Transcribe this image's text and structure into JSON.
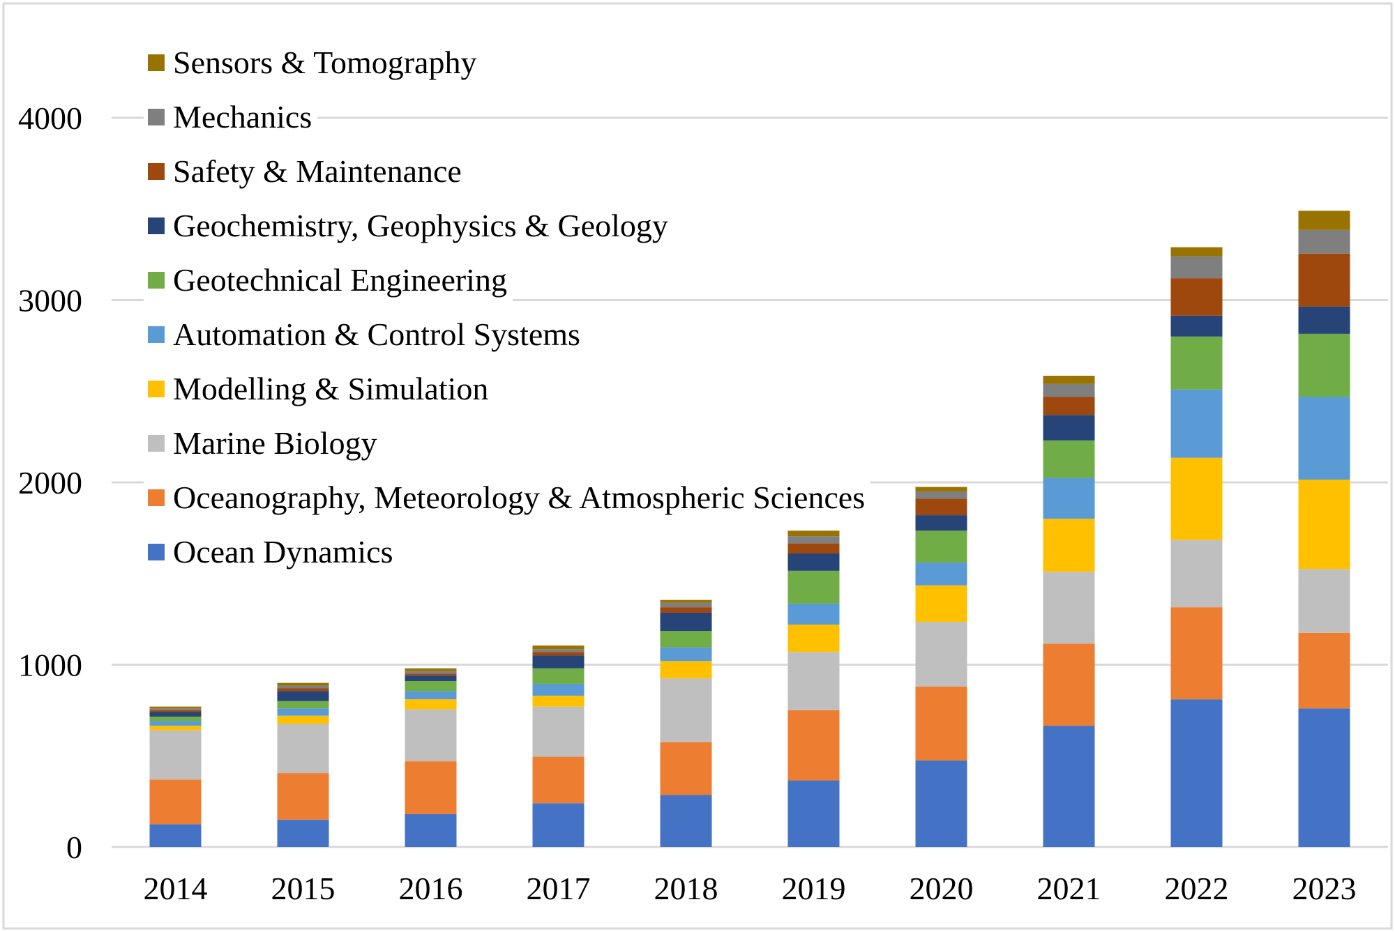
{
  "chart_data": {
    "type": "bar",
    "stacked": true,
    "title": "",
    "xlabel": "",
    "ylabel": "",
    "ylim": [
      0,
      4500
    ],
    "y_ticks": [
      0,
      1000,
      2000,
      3000,
      4000
    ],
    "y_tick_labels": [
      "0",
      "1000",
      "2000",
      "3000",
      "4000"
    ],
    "grid": true,
    "legend_position": "top-left",
    "categories": [
      "2014",
      "2015",
      "2016",
      "2017",
      "2018",
      "2019",
      "2020",
      "2021",
      "2022",
      "2023"
    ],
    "series": [
      {
        "name": "Ocean Dynamics",
        "color": "#4472C4",
        "values": [
          125,
          150,
          180,
          240,
          285,
          365,
          475,
          665,
          810,
          760
        ]
      },
      {
        "name": "Oceanography, Meteorology & Atmospheric Sciences",
        "color": "#ED7D31",
        "values": [
          245,
          255,
          290,
          255,
          290,
          385,
          405,
          450,
          505,
          415
        ]
      },
      {
        "name": "Marine Biology",
        "color": "#BFBFBF",
        "values": [
          270,
          270,
          285,
          275,
          350,
          320,
          355,
          395,
          370,
          350
        ]
      },
      {
        "name": "Modelling & Simulation",
        "color": "#FFC000",
        "values": [
          25,
          45,
          55,
          60,
          95,
          150,
          200,
          290,
          450,
          490
        ]
      },
      {
        "name": "Automation & Control Systems",
        "color": "#5B9BD5",
        "values": [
          25,
          40,
          45,
          65,
          75,
          115,
          125,
          225,
          375,
          455
        ]
      },
      {
        "name": "Geotechnical Engineering",
        "color": "#70AD47",
        "values": [
          25,
          40,
          55,
          85,
          90,
          180,
          175,
          205,
          290,
          345
        ]
      },
      {
        "name": "Geochemistry, Geophysics & Geology",
        "color": "#264478",
        "values": [
          25,
          55,
          30,
          70,
          100,
          95,
          85,
          140,
          115,
          150
        ]
      },
      {
        "name": "Safety & Maintenance",
        "color": "#9E480E",
        "values": [
          10,
          15,
          10,
          20,
          30,
          55,
          90,
          100,
          205,
          290
        ]
      },
      {
        "name": "Mechanics",
        "color": "#7F7F7F",
        "values": [
          10,
          15,
          15,
          15,
          25,
          40,
          40,
          70,
          120,
          130
        ]
      },
      {
        "name": "Sensors & Tomography",
        "color": "#997300",
        "values": [
          10,
          15,
          15,
          20,
          15,
          30,
          25,
          45,
          50,
          105
        ]
      }
    ]
  }
}
